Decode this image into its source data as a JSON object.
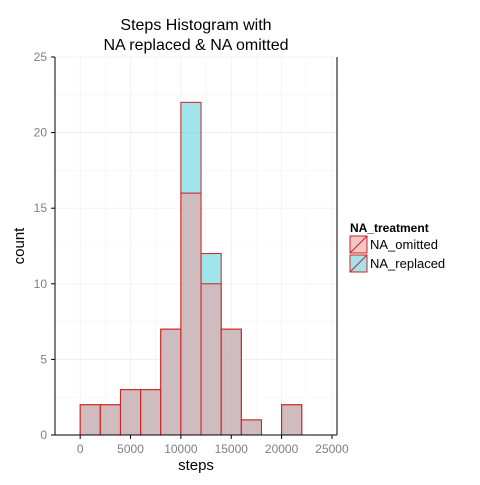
{
  "chart_data": {
    "type": "bar",
    "title_lines": [
      "Steps Histogram with",
      "NA replaced & NA omitted"
    ],
    "xlabel": "steps",
    "ylabel": "count",
    "xlim": [
      -2500,
      25500
    ],
    "ylim": [
      0,
      25
    ],
    "x_ticks": [
      0,
      5000,
      10000,
      15000,
      20000,
      25000
    ],
    "x_tick_labels": [
      "0",
      "5000",
      "10000",
      "15000",
      "20000",
      "25000"
    ],
    "y_ticks": [
      0,
      5,
      10,
      15,
      20,
      25
    ],
    "y_tick_labels": [
      "0",
      "5",
      "10",
      "15",
      "20",
      "25"
    ],
    "bin_width": 2000,
    "bin_starts": [
      0,
      2000,
      4000,
      6000,
      8000,
      10000,
      12000,
      14000,
      16000,
      18000,
      20000
    ],
    "grid": true,
    "legend_position": "right",
    "legend_title": "NA_treatment",
    "series": [
      {
        "name": "NA_replaced",
        "color": "#5fd3de",
        "values": [
          2,
          2,
          3,
          3,
          7,
          22,
          12,
          7,
          1,
          0,
          2
        ]
      },
      {
        "name": "NA_omitted",
        "color": "#f0a0a0",
        "values": [
          2,
          2,
          3,
          3,
          7,
          16,
          10,
          7,
          1,
          0,
          2
        ]
      }
    ],
    "outline_color": "#cc2222"
  }
}
